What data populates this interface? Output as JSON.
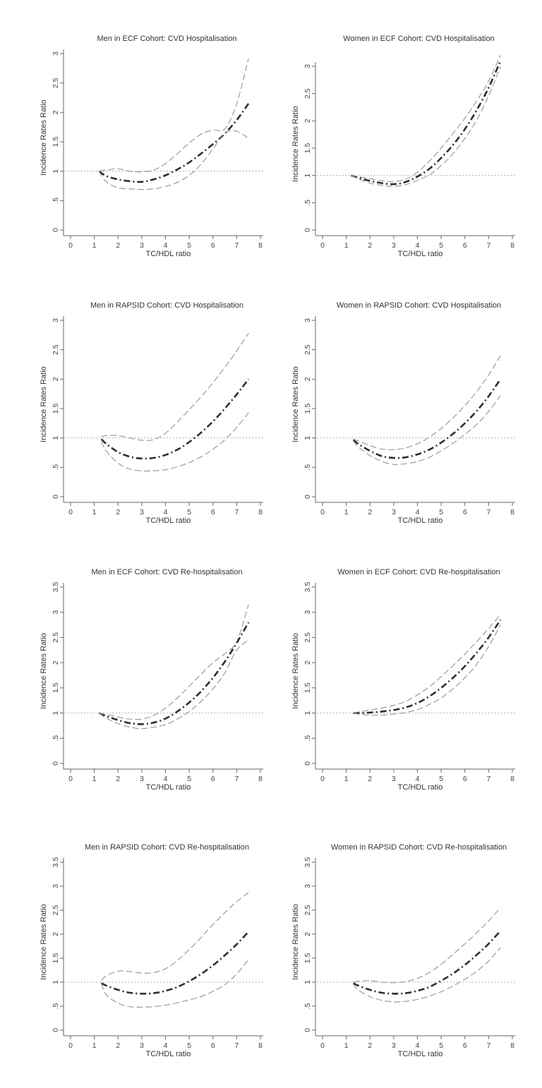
{
  "colors": {
    "point": "#2e2e2e",
    "ci": "#8a8a8a",
    "ref": "#9a9a9a",
    "axis": "#666666"
  },
  "chart_data": [
    {
      "type": "line",
      "title": "Men in ECF Cohort: CVD Hospitalisation",
      "xlabel": "TC/HDL ratio",
      "ylabel": "Incidence Rates Ratio",
      "xlim": [
        0,
        8
      ],
      "ylim": [
        0,
        3
      ],
      "xticks": [
        "0",
        "1",
        "2",
        "3",
        "4",
        "5",
        "6",
        "7",
        "8"
      ],
      "yticks": [
        "0",
        ".5",
        "1",
        "1.5",
        "2",
        "2.5",
        "3"
      ],
      "reference_line": 1,
      "x": [
        1.2,
        1.5,
        2,
        2.5,
        3,
        3.5,
        4,
        4.5,
        5,
        5.5,
        6,
        6.5,
        7,
        7.5
      ],
      "series": [
        {
          "role": "estimate",
          "values": [
            1.0,
            0.92,
            0.86,
            0.83,
            0.82,
            0.86,
            0.93,
            1.03,
            1.15,
            1.3,
            1.46,
            1.64,
            1.87,
            2.15
          ]
        },
        {
          "role": "upper",
          "values": [
            1.0,
            1.02,
            1.04,
            1.0,
            0.99,
            1.02,
            1.13,
            1.3,
            1.48,
            1.63,
            1.7,
            1.72,
            2.15,
            2.92
          ]
        },
        {
          "role": "lower",
          "values": [
            1.0,
            0.82,
            0.72,
            0.7,
            0.69,
            0.7,
            0.74,
            0.81,
            0.93,
            1.12,
            1.38,
            1.65,
            1.68,
            1.56
          ]
        }
      ]
    },
    {
      "type": "line",
      "title": "Women in ECF Cohort: CVD Hospitalisation",
      "xlabel": "TC/HDL ratio",
      "ylabel": "Incidence Rates Ratio",
      "xlim": [
        0,
        8
      ],
      "ylim": [
        0,
        3.2
      ],
      "xticks": [
        "0",
        "1",
        "2",
        "3",
        "4",
        "5",
        "6",
        "7",
        "8"
      ],
      "yticks": [
        "0",
        ".5",
        "1",
        "1.5",
        "2",
        "2.5",
        "3"
      ],
      "reference_line": 1,
      "x": [
        1.2,
        1.5,
        2,
        2.5,
        3,
        3.5,
        4,
        4.5,
        5,
        5.5,
        6,
        6.5,
        7,
        7.5
      ],
      "series": [
        {
          "role": "estimate",
          "values": [
            1.0,
            0.96,
            0.9,
            0.86,
            0.84,
            0.88,
            0.98,
            1.12,
            1.32,
            1.56,
            1.85,
            2.2,
            2.61,
            3.1
          ]
        },
        {
          "role": "upper",
          "values": [
            1.0,
            0.98,
            0.94,
            0.9,
            0.89,
            0.93,
            1.06,
            1.26,
            1.5,
            1.77,
            2.05,
            2.37,
            2.73,
            3.2
          ]
        },
        {
          "role": "lower",
          "values": [
            1.0,
            0.94,
            0.86,
            0.82,
            0.8,
            0.83,
            0.91,
            1.01,
            1.18,
            1.4,
            1.68,
            2.02,
            2.46,
            3.0
          ]
        }
      ]
    },
    {
      "type": "line",
      "title": "Men in RAPSID Cohort: CVD Hospitalisation",
      "xlabel": "TC/HDL ratio",
      "ylabel": "Incidence Rates Ratio",
      "xlim": [
        0,
        8
      ],
      "ylim": [
        0,
        3
      ],
      "xticks": [
        "0",
        "1",
        "2",
        "3",
        "4",
        "5",
        "6",
        "7",
        "8"
      ],
      "yticks": [
        "0",
        ".5",
        "1",
        "1.5",
        "2",
        "2.5",
        "3"
      ],
      "reference_line": 1,
      "x": [
        1.3,
        1.5,
        2,
        2.5,
        3,
        3.5,
        4,
        4.5,
        5,
        5.5,
        6,
        6.5,
        7,
        7.5
      ],
      "series": [
        {
          "role": "estimate",
          "values": [
            0.98,
            0.9,
            0.76,
            0.68,
            0.65,
            0.66,
            0.71,
            0.8,
            0.93,
            1.09,
            1.28,
            1.5,
            1.74,
            2.0
          ]
        },
        {
          "role": "upper",
          "values": [
            1.02,
            1.04,
            1.04,
            1.0,
            0.96,
            0.97,
            1.08,
            1.27,
            1.48,
            1.7,
            1.94,
            2.2,
            2.48,
            2.78
          ]
        },
        {
          "role": "lower",
          "values": [
            0.94,
            0.78,
            0.57,
            0.47,
            0.44,
            0.44,
            0.46,
            0.51,
            0.58,
            0.68,
            0.81,
            0.97,
            1.18,
            1.43
          ]
        }
      ]
    },
    {
      "type": "line",
      "title": "Women in RAPSID Cohort: CVD Hospitalisation",
      "xlabel": "TC/HDL ratio",
      "ylabel": "Incidence Rates Ratio",
      "xlim": [
        0,
        8
      ],
      "ylim": [
        0,
        3
      ],
      "xticks": [
        "0",
        "1",
        "2",
        "3",
        "4",
        "5",
        "6",
        "7",
        "8"
      ],
      "yticks": [
        "0",
        ".5",
        "1",
        "1.5",
        "2",
        "2.5",
        "3"
      ],
      "reference_line": 1,
      "x": [
        1.3,
        1.5,
        2,
        2.5,
        3,
        3.5,
        4,
        4.5,
        5,
        5.5,
        6,
        6.5,
        7,
        7.5
      ],
      "series": [
        {
          "role": "estimate",
          "values": [
            0.97,
            0.9,
            0.78,
            0.69,
            0.66,
            0.67,
            0.72,
            0.8,
            0.92,
            1.07,
            1.25,
            1.46,
            1.71,
            2.0
          ]
        },
        {
          "role": "upper",
          "values": [
            0.98,
            0.95,
            0.87,
            0.81,
            0.8,
            0.83,
            0.9,
            1.01,
            1.16,
            1.34,
            1.55,
            1.79,
            2.07,
            2.4
          ]
        },
        {
          "role": "lower",
          "values": [
            0.95,
            0.85,
            0.7,
            0.6,
            0.55,
            0.56,
            0.6,
            0.67,
            0.78,
            0.91,
            1.06,
            1.23,
            1.45,
            1.72
          ]
        }
      ]
    },
    {
      "type": "line",
      "title": "Men in ECF Cohort: CVD Re-hospitalisation",
      "xlabel": "TC/HDL ratio",
      "ylabel": "Incidence Rates Ratio",
      "xlim": [
        0,
        8
      ],
      "ylim": [
        0,
        3.5
      ],
      "xticks": [
        "0",
        "1",
        "2",
        "3",
        "4",
        "5",
        "6",
        "7",
        "8"
      ],
      "yticks": [
        "0",
        ".5",
        "1",
        "1.5",
        "2",
        "2.5",
        "3",
        "3.5"
      ],
      "reference_line": 1,
      "x": [
        1.2,
        1.5,
        2,
        2.5,
        3,
        3.5,
        4,
        4.5,
        5,
        5.5,
        6,
        6.5,
        7,
        7.5
      ],
      "series": [
        {
          "role": "estimate",
          "values": [
            1.0,
            0.94,
            0.86,
            0.8,
            0.78,
            0.81,
            0.89,
            1.03,
            1.21,
            1.43,
            1.7,
            2.02,
            2.39,
            2.8
          ]
        },
        {
          "role": "upper",
          "values": [
            1.0,
            0.97,
            0.92,
            0.88,
            0.88,
            0.95,
            1.1,
            1.3,
            1.53,
            1.77,
            2.0,
            2.18,
            2.42,
            3.15
          ]
        },
        {
          "role": "lower",
          "values": [
            1.0,
            0.9,
            0.79,
            0.72,
            0.69,
            0.72,
            0.77,
            0.88,
            1.03,
            1.23,
            1.48,
            1.8,
            2.25,
            2.45
          ]
        }
      ]
    },
    {
      "type": "line",
      "title": "Women in ECF Cohort: CVD Re-hospitalisation",
      "xlabel": "TC/HDL ratio",
      "ylabel": "Incidence Rates Ratio",
      "xlim": [
        0,
        8
      ],
      "ylim": [
        0,
        3.5
      ],
      "xticks": [
        "0",
        "1",
        "2",
        "3",
        "4",
        "5",
        "6",
        "7",
        "8"
      ],
      "yticks": [
        "0",
        ".5",
        "1",
        "1.5",
        "2",
        "2.5",
        "3",
        "3.5"
      ],
      "reference_line": 1,
      "x": [
        1.3,
        1.5,
        2,
        2.5,
        3,
        3.5,
        4,
        4.5,
        5,
        5.5,
        6,
        6.5,
        7,
        7.5
      ],
      "series": [
        {
          "role": "estimate",
          "values": [
            1.0,
            1.0,
            1.01,
            1.03,
            1.06,
            1.11,
            1.2,
            1.33,
            1.5,
            1.7,
            1.93,
            2.2,
            2.5,
            2.85
          ]
        },
        {
          "role": "upper",
          "values": [
            1.0,
            1.02,
            1.06,
            1.1,
            1.15,
            1.23,
            1.36,
            1.52,
            1.72,
            1.94,
            2.17,
            2.42,
            2.68,
            2.95
          ]
        },
        {
          "role": "lower",
          "values": [
            1.0,
            0.98,
            0.96,
            0.96,
            0.98,
            1.01,
            1.07,
            1.17,
            1.3,
            1.48,
            1.7,
            1.97,
            2.32,
            2.75
          ]
        }
      ]
    },
    {
      "type": "line",
      "title": "Men in RAPSID Cohort: CVD Re-hospitalisation",
      "xlabel": "TC/HDL ratio",
      "ylabel": "Incidence Rates Ratio",
      "xlim": [
        0,
        8
      ],
      "ylim": [
        0,
        3.5
      ],
      "xticks": [
        "0",
        "1",
        "2",
        "3",
        "4",
        "5",
        "6",
        "7",
        "8"
      ],
      "yticks": [
        "0",
        ".5",
        "1",
        "1.5",
        "2",
        "2.5",
        "3",
        "3.5"
      ],
      "reference_line": 1,
      "x": [
        1.3,
        1.5,
        2,
        2.5,
        3,
        3.5,
        4,
        4.5,
        5,
        5.5,
        6,
        6.5,
        7,
        7.5
      ],
      "series": [
        {
          "role": "estimate",
          "values": [
            0.98,
            0.93,
            0.84,
            0.78,
            0.76,
            0.77,
            0.82,
            0.9,
            1.02,
            1.17,
            1.35,
            1.56,
            1.79,
            2.05
          ]
        },
        {
          "role": "upper",
          "values": [
            1.04,
            1.13,
            1.23,
            1.22,
            1.19,
            1.2,
            1.28,
            1.45,
            1.68,
            1.93,
            2.2,
            2.45,
            2.68,
            2.87
          ]
        },
        {
          "role": "lower",
          "values": [
            0.97,
            0.74,
            0.56,
            0.49,
            0.48,
            0.49,
            0.52,
            0.57,
            0.63,
            0.7,
            0.81,
            0.95,
            1.17,
            1.47
          ]
        }
      ]
    },
    {
      "type": "line",
      "title": "Women in RAPSID Cohort: CVD Re-hospitalisation",
      "xlabel": "TC/HDL ratio",
      "ylabel": "Incidence Rates Ratio",
      "xlim": [
        0,
        8
      ],
      "ylim": [
        0,
        3.5
      ],
      "xticks": [
        "0",
        "1",
        "2",
        "3",
        "4",
        "5",
        "6",
        "7",
        "8"
      ],
      "yticks": [
        "0",
        ".5",
        "1",
        "1.5",
        "2",
        "2.5",
        "3",
        "3.5"
      ],
      "reference_line": 1,
      "x": [
        1.3,
        1.5,
        2,
        2.5,
        3,
        3.5,
        4,
        4.5,
        5,
        5.5,
        6,
        6.5,
        7,
        7.5
      ],
      "series": [
        {
          "role": "estimate",
          "values": [
            0.98,
            0.93,
            0.84,
            0.78,
            0.76,
            0.77,
            0.82,
            0.9,
            1.03,
            1.18,
            1.36,
            1.57,
            1.8,
            2.07
          ]
        },
        {
          "role": "upper",
          "values": [
            1.0,
            1.02,
            1.03,
            1.0,
            0.99,
            1.01,
            1.08,
            1.2,
            1.37,
            1.58,
            1.8,
            2.03,
            2.28,
            2.55
          ]
        },
        {
          "role": "lower",
          "values": [
            0.96,
            0.84,
            0.7,
            0.62,
            0.59,
            0.6,
            0.64,
            0.71,
            0.8,
            0.92,
            1.06,
            1.23,
            1.44,
            1.72
          ]
        }
      ]
    }
  ]
}
